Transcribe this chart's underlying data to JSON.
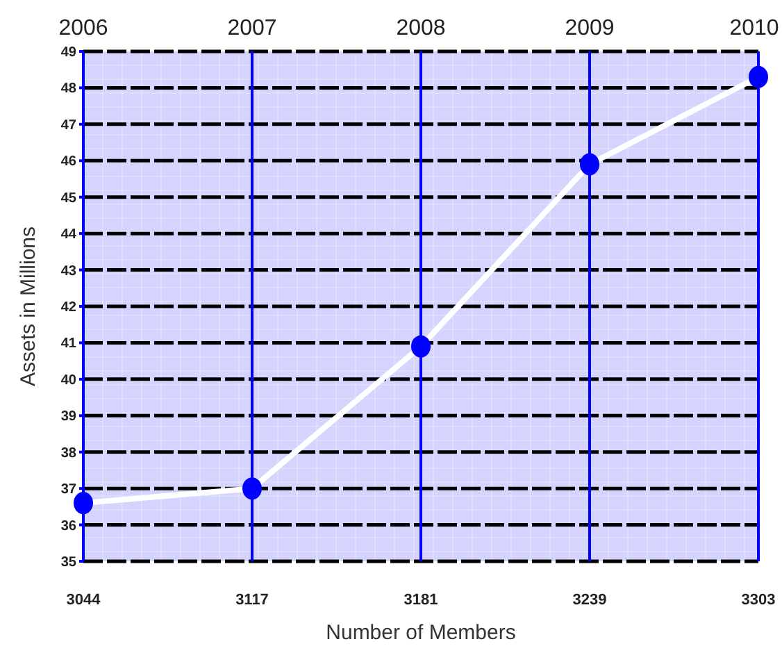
{
  "chart_data": {
    "type": "line",
    "xlabel": "Number of Members",
    "ylabel": "Assets in Millions",
    "categories": [
      "3044",
      "3117",
      "3181",
      "3239",
      "3303"
    ],
    "series": [
      {
        "color": "#ffffff",
        "values": [
          36.6,
          37.0,
          40.9,
          45.9,
          48.3
        ]
      }
    ],
    "ylim": [
      35,
      49
    ],
    "yticks": [
      35,
      36,
      37,
      38,
      39,
      40,
      41,
      42,
      43,
      44,
      45,
      46,
      47,
      48,
      49
    ],
    "grid": true,
    "marker": "circle",
    "line_style": "solid",
    "annotations": [
      "2006",
      "2007",
      "2008",
      "2009",
      "2010"
    ]
  }
}
